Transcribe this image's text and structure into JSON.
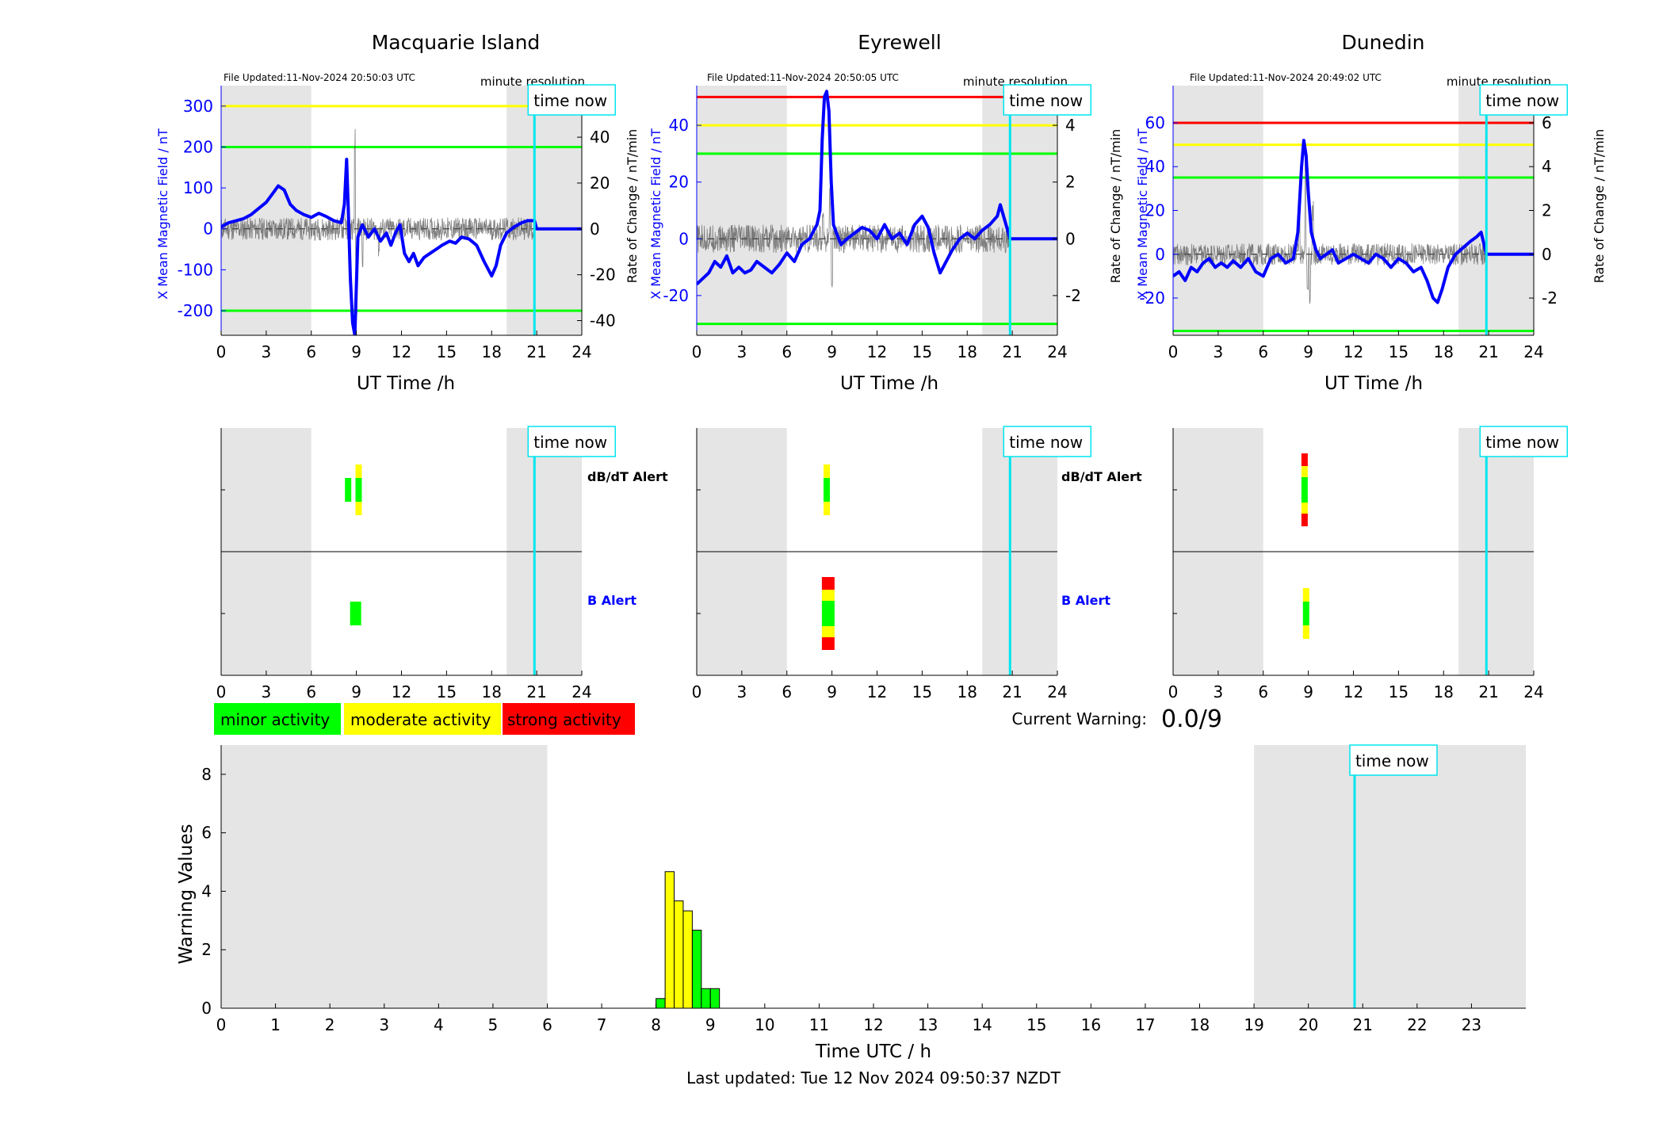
{
  "chart_data": [
    {
      "type": "line",
      "title": "Macquarie Island",
      "file_updated": "File Updated:11-Nov-2024 20:50:03 UTC",
      "resolution_label": "minute resolution",
      "time_now_label": "time now",
      "xlabel": "UT Time /h",
      "ylabel_left": "X Mean Magnetic Field / nT",
      "ylabel_right": "Rate of Change / nT/min",
      "xlim": [
        0,
        24
      ],
      "xticks": [
        0,
        3,
        6,
        9,
        12,
        15,
        18,
        21,
        24
      ],
      "ylim_left": [
        -260,
        350
      ],
      "yticks_left": [
        -200,
        -100,
        0,
        100,
        200,
        300
      ],
      "ylim_right": [
        -46.4,
        62.5
      ],
      "yticks_right": [
        -40,
        -20,
        0,
        20,
        40
      ],
      "night_shading": [
        [
          0,
          6
        ],
        [
          19,
          24
        ]
      ],
      "time_now": 20.85,
      "thresholds": [
        {
          "value": 300,
          "color": "#ffff00"
        },
        {
          "value": 200,
          "color": "#00ff00"
        },
        {
          "value": -200,
          "color": "#00ff00"
        }
      ],
      "series": [
        {
          "role": "field",
          "color": "#0000ff",
          "x": [
            0,
            0.5,
            1,
            1.5,
            2,
            2.5,
            3,
            3.5,
            3.8,
            4.2,
            4.6,
            5,
            5.5,
            6,
            6.5,
            7,
            7.5,
            8,
            8.2,
            8.35,
            8.45,
            8.6,
            8.75,
            8.9,
            9.1,
            9.4,
            9.8,
            10.2,
            10.6,
            11,
            11.3,
            11.6,
            11.9,
            12.2,
            12.5,
            12.8,
            13.1,
            13.5,
            13.9,
            14.3,
            14.7,
            15.2,
            15.6,
            16,
            16.5,
            17,
            17.5,
            18,
            18.3,
            18.6,
            19,
            19.5,
            20,
            20.4,
            20.85,
            21,
            22,
            23,
            24
          ],
          "y": [
            5,
            15,
            20,
            25,
            35,
            50,
            65,
            90,
            105,
            95,
            60,
            45,
            35,
            28,
            38,
            30,
            20,
            15,
            60,
            170,
            60,
            -120,
            -230,
            -260,
            -20,
            10,
            -20,
            0,
            -30,
            -10,
            -40,
            -10,
            10,
            -60,
            -80,
            -60,
            -90,
            -70,
            -60,
            -50,
            -40,
            -30,
            -35,
            -20,
            -25,
            -40,
            -80,
            -115,
            -90,
            -40,
            -10,
            5,
            15,
            20,
            20,
            0,
            0,
            0,
            0
          ]
        },
        {
          "role": "rate_of_change",
          "color": "#555555",
          "x_range": [
            0,
            20.85
          ],
          "amplitude": 5,
          "spikes": [
            [
              8.2,
              12
            ],
            [
              8.9,
              45
            ],
            [
              9.0,
              -40
            ],
            [
              9.4,
              -18
            ],
            [
              10.5,
              -12
            ]
          ]
        }
      ]
    },
    {
      "type": "line",
      "title": "Eyrewell",
      "file_updated": "File Updated:11-Nov-2024 20:50:05 UTC",
      "resolution_label": "minute resolution",
      "time_now_label": "time now",
      "xlabel": "UT Time /h",
      "ylabel_left": "X Mean Magnetic Field / nT",
      "ylabel_right": "Rate of Change / nT/min",
      "xlim": [
        0,
        24
      ],
      "xticks": [
        0,
        3,
        6,
        9,
        12,
        15,
        18,
        21,
        24
      ],
      "ylim_left": [
        -34,
        54
      ],
      "yticks_left": [
        -20,
        0,
        20,
        40
      ],
      "ylim_right": [
        -3.4,
        5.4
      ],
      "yticks_right": [
        -2,
        0,
        2,
        4
      ],
      "night_shading": [
        [
          0,
          6
        ],
        [
          19,
          24
        ]
      ],
      "time_now": 20.85,
      "thresholds": [
        {
          "value": 50,
          "color": "#ff0000"
        },
        {
          "value": 40,
          "color": "#ffff00"
        },
        {
          "value": 30,
          "color": "#00ff00"
        },
        {
          "value": -30,
          "color": "#00ff00"
        }
      ],
      "series": [
        {
          "role": "field",
          "color": "#0000ff",
          "x": [
            0,
            0.4,
            0.8,
            1.2,
            1.6,
            2,
            2.4,
            2.8,
            3.2,
            3.6,
            4,
            4.5,
            5,
            5.5,
            6,
            6.5,
            7,
            7.5,
            8,
            8.2,
            8.35,
            8.5,
            8.65,
            8.8,
            8.95,
            9.1,
            9.3,
            9.6,
            10,
            10.5,
            11,
            11.5,
            12,
            12.5,
            13,
            13.5,
            14,
            14.5,
            15,
            15.4,
            15.8,
            16.2,
            16.6,
            17,
            17.5,
            18,
            18.5,
            19,
            19.5,
            20,
            20.2,
            20.85,
            21,
            22,
            23,
            24
          ],
          "y": [
            -16,
            -14,
            -12,
            -8,
            -10,
            -6,
            -12,
            -10,
            -12,
            -11,
            -8,
            -10,
            -12,
            -9,
            -5,
            -8,
            -2,
            0,
            5,
            10,
            35,
            50,
            52,
            45,
            20,
            5,
            2,
            -2,
            0,
            2,
            4,
            3,
            0,
            5,
            0,
            2,
            -2,
            5,
            8,
            4,
            -5,
            -12,
            -8,
            -4,
            0,
            2,
            0,
            3,
            5,
            8,
            12,
            0,
            0,
            0,
            0,
            0
          ]
        },
        {
          "role": "rate_of_change",
          "color": "#555555",
          "x_range": [
            0,
            20.85
          ],
          "amplitude": 0.5,
          "spikes": [
            [
              8.4,
              1.2
            ],
            [
              9.0,
              -2.2
            ],
            [
              8.85,
              1.8
            ]
          ]
        }
      ]
    },
    {
      "type": "line",
      "title": "Dunedin",
      "file_updated": "File Updated:11-Nov-2024 20:49:02 UTC",
      "resolution_label": "minute resolution",
      "time_now_label": "time now",
      "xlabel": "UT Time /h",
      "ylabel_left": "X Mean Magnetic Field / nT",
      "ylabel_right": "Rate of Change / nT/min",
      "xlim": [
        0,
        24
      ],
      "xticks": [
        0,
        3,
        6,
        9,
        12,
        15,
        18,
        21,
        24
      ],
      "ylim_left": [
        -37,
        77
      ],
      "yticks_left": [
        -20,
        0,
        20,
        40,
        60
      ],
      "ylim_right": [
        -3.7,
        7.7
      ],
      "yticks_right": [
        -2,
        0,
        2,
        4,
        6
      ],
      "night_shading": [
        [
          0,
          6
        ],
        [
          19,
          24
        ]
      ],
      "time_now": 20.85,
      "thresholds": [
        {
          "value": 60,
          "color": "#ff0000"
        },
        {
          "value": 50,
          "color": "#ffff00"
        },
        {
          "value": 35,
          "color": "#00ff00"
        },
        {
          "value": -35,
          "color": "#00ff00"
        }
      ],
      "series": [
        {
          "role": "field",
          "color": "#0000ff",
          "x": [
            0,
            0.4,
            0.8,
            1.2,
            1.6,
            2,
            2.4,
            2.8,
            3.2,
            3.6,
            4,
            4.5,
            5,
            5.5,
            6,
            6.5,
            7,
            7.5,
            8,
            8.3,
            8.55,
            8.7,
            8.85,
            9,
            9.2,
            9.5,
            9.8,
            10.2,
            10.6,
            11,
            11.5,
            12,
            12.5,
            13,
            13.5,
            14,
            14.5,
            15,
            15.5,
            16,
            16.5,
            16.9,
            17.3,
            17.6,
            17.9,
            18.3,
            18.8,
            19.3,
            19.8,
            20.2,
            20.5,
            20.85,
            21,
            22,
            23,
            24
          ],
          "y": [
            -10,
            -8,
            -12,
            -6,
            -8,
            -4,
            -2,
            -6,
            -4,
            -6,
            -3,
            -6,
            -2,
            -8,
            -10,
            -2,
            0,
            -4,
            -2,
            10,
            40,
            52,
            45,
            28,
            10,
            2,
            -2,
            0,
            2,
            -4,
            -2,
            0,
            -2,
            -4,
            0,
            -2,
            -6,
            -2,
            -4,
            -8,
            -6,
            -12,
            -20,
            -22,
            -16,
            -6,
            0,
            3,
            6,
            8,
            10,
            0,
            0,
            0,
            0,
            0
          ]
        },
        {
          "role": "rate_of_change",
          "color": "#555555",
          "x_range": [
            0,
            20.85
          ],
          "amplitude": 0.5,
          "spikes": [
            [
              8.4,
              2.0
            ],
            [
              8.8,
              6.0
            ],
            [
              8.95,
              -2.5
            ],
            [
              9.1,
              -3.0
            ],
            [
              9.3,
              2.5
            ]
          ]
        }
      ]
    }
  ],
  "alert_panels": {
    "dbdt_label": "dB/dT Alert",
    "b_label": "B Alert",
    "time_now_label": "time now",
    "xticks": [
      0,
      3,
      6,
      9,
      12,
      15,
      18,
      21,
      24
    ],
    "time_now": 20.85,
    "night_shading": [
      [
        0,
        6
      ],
      [
        19,
        24
      ]
    ],
    "stations": [
      {
        "name": "Macquarie Island",
        "dbdt": [
          {
            "x": 8.45,
            "levels": [
              "minor"
            ]
          },
          {
            "x": 9.15,
            "levels": [
              "moderate",
              "minor",
              "moderate"
            ]
          }
        ],
        "b": [
          {
            "x": 8.95,
            "levels": [
              "minor"
            ]
          }
        ]
      },
      {
        "name": "Eyrewell",
        "dbdt": [
          {
            "x": 8.65,
            "levels": [
              "moderate",
              "minor",
              "moderate"
            ]
          }
        ],
        "b": [
          {
            "x": 8.75,
            "levels": [
              "strong",
              "moderate",
              "minor",
              "moderate",
              "strong"
            ]
          }
        ]
      },
      {
        "name": "Dunedin",
        "dbdt": [
          {
            "x": 8.75,
            "levels": [
              "strong",
              "moderate",
              "minor",
              "moderate",
              "strong"
            ]
          }
        ],
        "b": [
          {
            "x": 8.85,
            "levels": [
              "moderate",
              "minor",
              "moderate"
            ]
          }
        ]
      }
    ]
  },
  "legend": {
    "minor": {
      "label": "minor activity",
      "color": "#00ff00"
    },
    "moderate": {
      "label": "moderate activity",
      "color": "#ffff00"
    },
    "strong": {
      "label": "strong activity",
      "color": "#ff0000"
    }
  },
  "current_warning": {
    "label": "Current Warning:",
    "value": "0.0/9"
  },
  "warning_chart": {
    "type": "bar",
    "xlabel": "Time UTC / h",
    "ylabel": "Warning Values",
    "xlim": [
      0,
      24
    ],
    "ylim": [
      0,
      9
    ],
    "xticks": [
      0,
      1,
      2,
      3,
      4,
      5,
      6,
      7,
      8,
      9,
      10,
      11,
      12,
      13,
      14,
      15,
      16,
      17,
      18,
      19,
      20,
      21,
      22,
      23
    ],
    "yticks": [
      0,
      2,
      4,
      6,
      8
    ],
    "night_shading": [
      [
        0,
        6
      ],
      [
        19,
        24
      ]
    ],
    "time_now": 20.85,
    "time_now_label": "time now",
    "bar_width": 0.1667,
    "bars": [
      {
        "x": 8.0,
        "value": 0.33,
        "level": "minor"
      },
      {
        "x": 8.167,
        "value": 4.67,
        "level": "moderate"
      },
      {
        "x": 8.333,
        "value": 3.67,
        "level": "moderate"
      },
      {
        "x": 8.5,
        "value": 3.33,
        "level": "moderate"
      },
      {
        "x": 8.667,
        "value": 2.67,
        "level": "minor"
      },
      {
        "x": 8.833,
        "value": 0.67,
        "level": "minor"
      },
      {
        "x": 9.0,
        "value": 0.67,
        "level": "minor"
      }
    ]
  },
  "footer": {
    "last_updated": "Last updated: Tue 12 Nov 2024 09:50:37 NZDT"
  }
}
